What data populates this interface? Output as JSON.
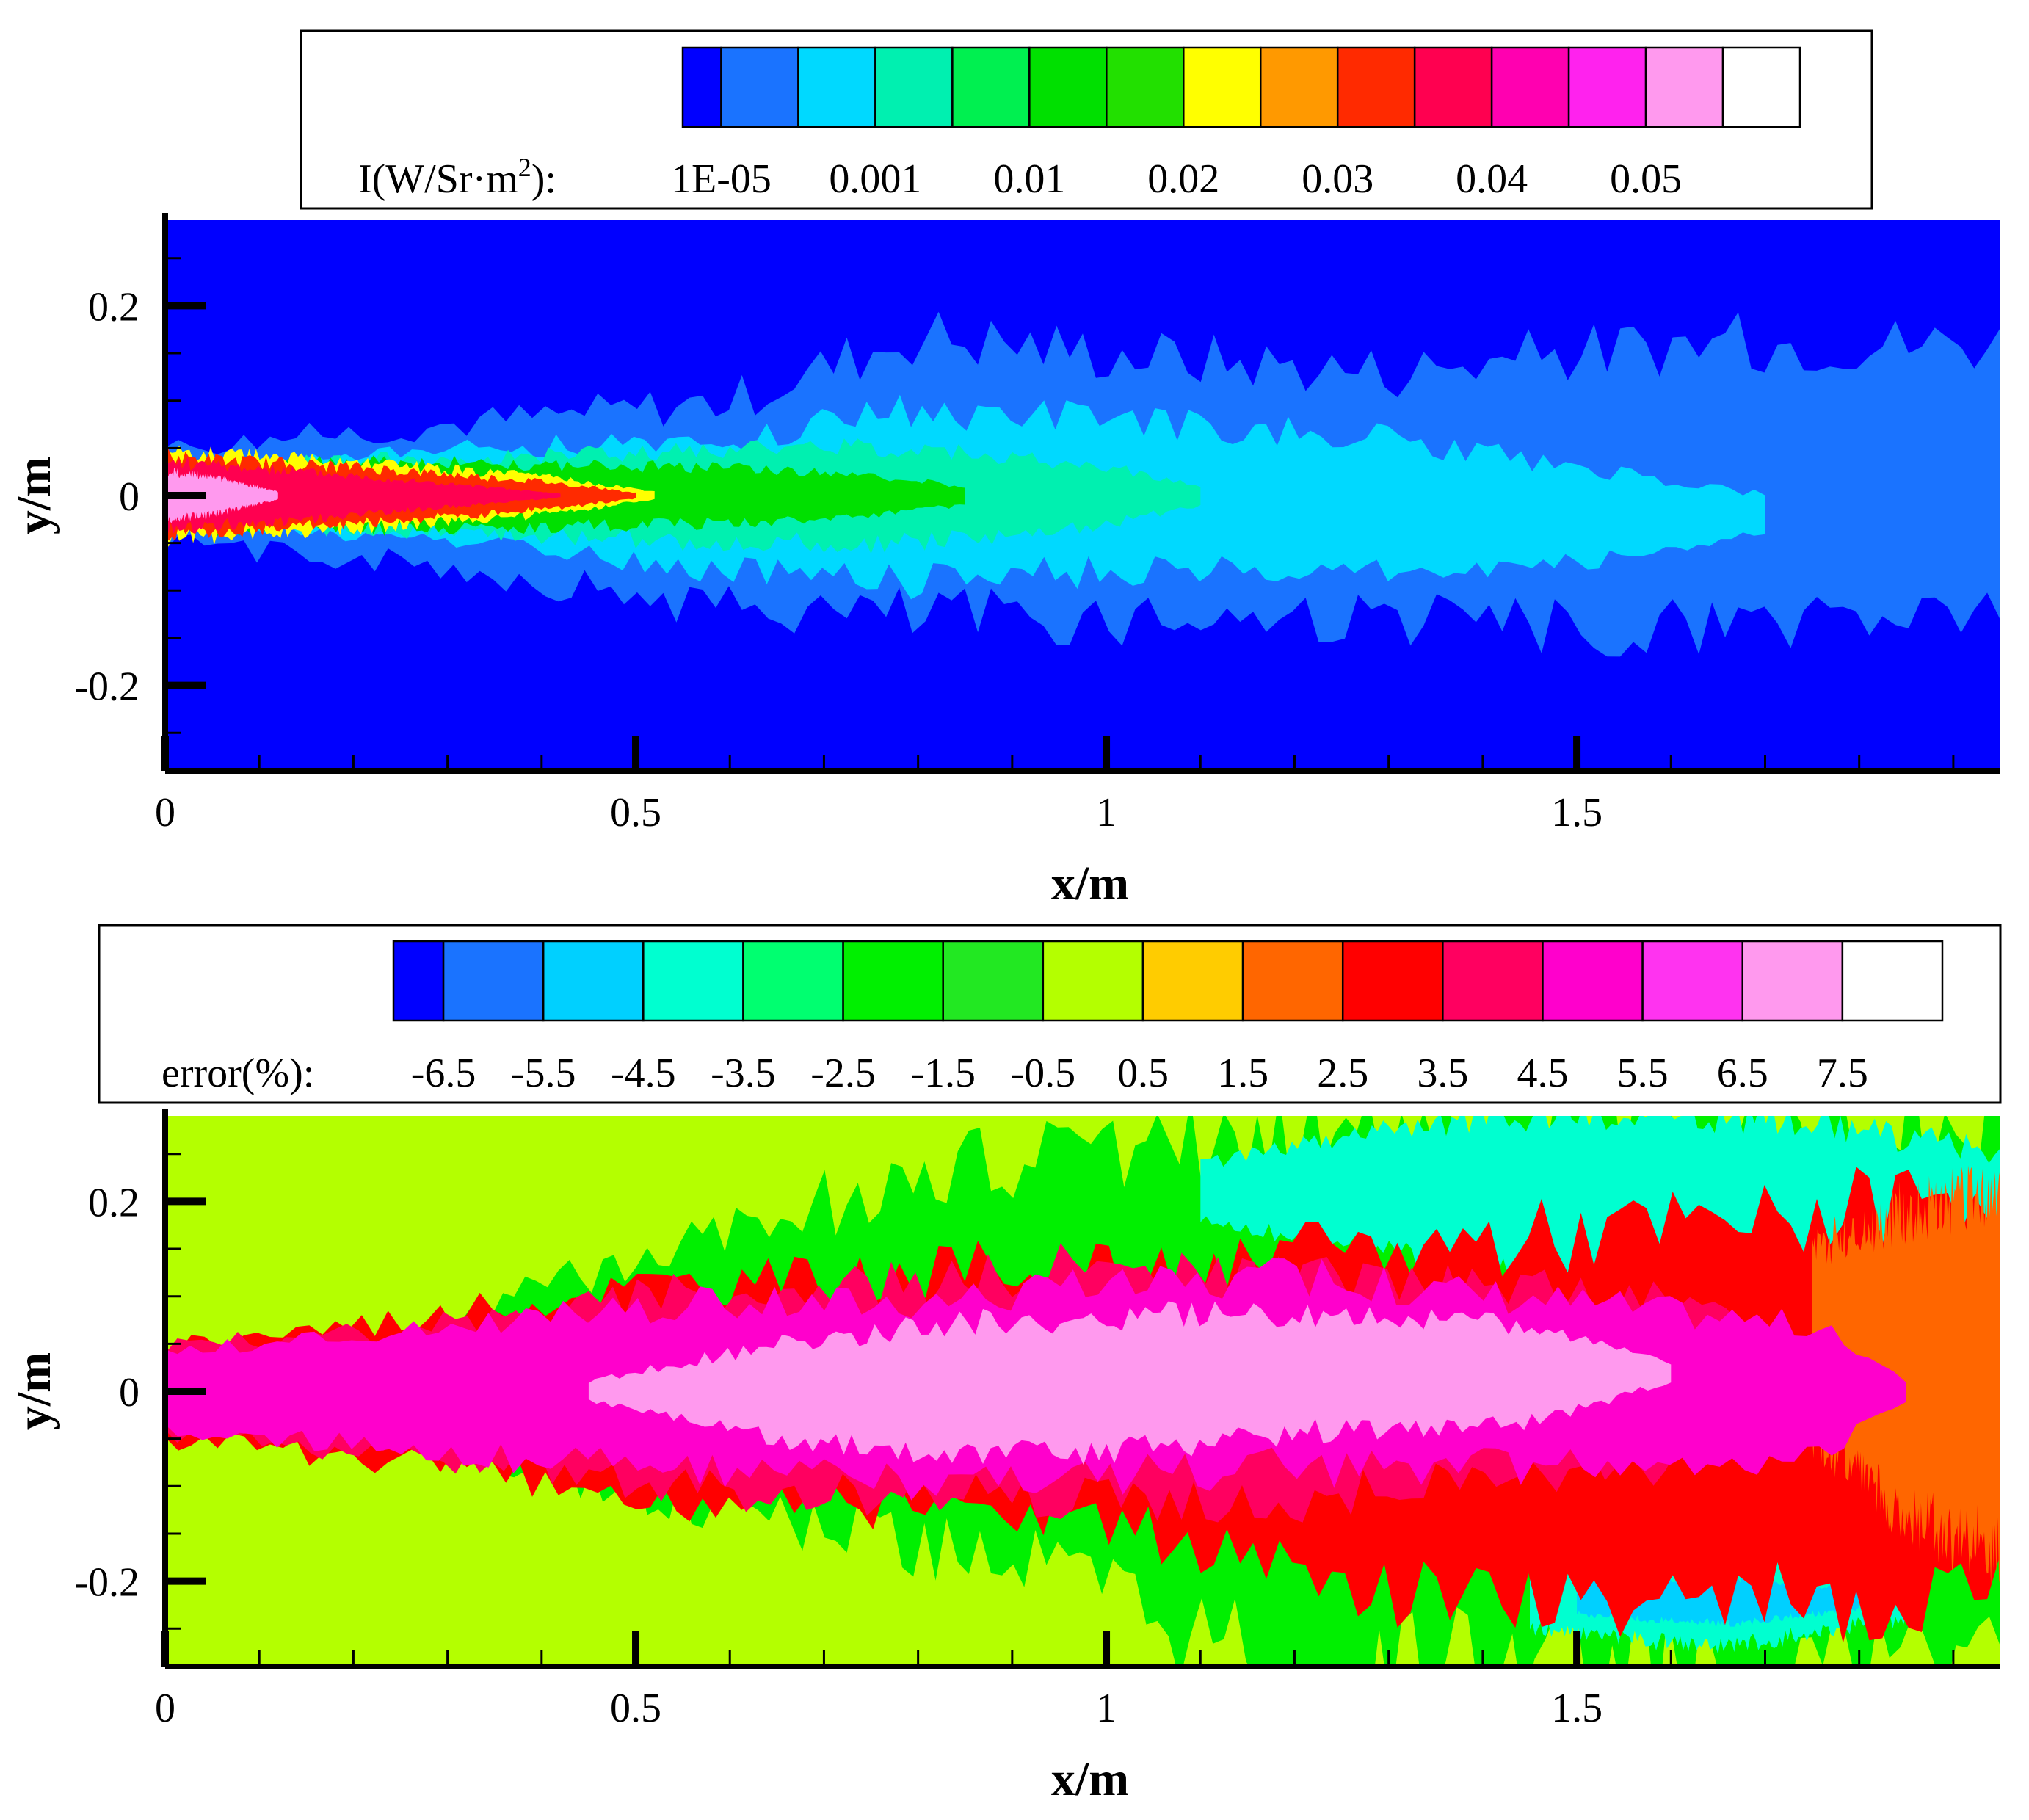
{
  "panels": [
    {
      "id": "intensity",
      "chart_data": {
        "type": "heatmap",
        "xlabel": "x/m",
        "ylabel": "y/m",
        "xlim": [
          0,
          1.95
        ],
        "ylim": [
          -0.29,
          0.29
        ],
        "x_ticks": [
          0,
          0.5,
          1,
          1.5
        ],
        "x_tick_labels": [
          "0",
          "0.5",
          "1",
          "1.5"
        ],
        "y_ticks": [
          0.2,
          0,
          -0.2
        ],
        "y_tick_labels": [
          "0.2",
          "0",
          "-0.2"
        ],
        "background_color": "#0000ff",
        "legend": {
          "label_html": "I(W/Sr·m²):",
          "label_prefix": "I(W/Sr·m",
          "label_sup": "2",
          "label_suffix": "):",
          "colors": [
            "#0000ff",
            "#1a73ff",
            "#00d9ff",
            "#00f0b0",
            "#00f050",
            "#00e000",
            "#22e000",
            "#ffff00",
            "#ff9900",
            "#ff2a00",
            "#ff0050",
            "#ff00b0",
            "#ff22ee",
            "#ff99ee",
            "#ffffff"
          ],
          "tick_labels": [
            "1E-05",
            "0.001",
            "0.01",
            "0.02",
            "0.03",
            "0.04",
            "0.05"
          ],
          "tick_at_box": [
            1,
            3,
            5,
            7,
            9,
            11,
            13
          ]
        },
        "layers": [
          {
            "color": "#1a73ff",
            "x": [
              0,
              0.3,
              0.6,
              0.8,
              1.0,
              1.3,
              1.6,
              1.95
            ],
            "half_width": [
              0.05,
              0.075,
              0.11,
              0.15,
              0.14,
              0.13,
              0.15,
              0.14
            ],
            "center": [
              0,
              0,
              -0.01,
              0.02,
              0.01,
              0,
              0.01,
              0.02
            ]
          },
          {
            "color": "#00d9ff",
            "x": [
              0.05,
              0.3,
              0.6,
              0.8,
              1.0,
              1.3,
              1.5,
              1.7
            ],
            "half_width": [
              0.03,
              0.05,
              0.07,
              0.09,
              0.08,
              0.07,
              0.05,
              0.02
            ],
            "center": [
              0,
              0,
              -0.01,
              0,
              0,
              -0.01,
              -0.02,
              -0.02
            ]
          },
          {
            "color": "#00f0b0",
            "x": [
              0.1,
              0.35,
              0.6,
              0.8,
              1.0,
              1.1
            ],
            "half_width": [
              0.035,
              0.04,
              0.05,
              0.05,
              0.03,
              0.01
            ],
            "center": [
              0,
              0,
              0,
              0,
              0,
              0
            ]
          },
          {
            "color": "#00e000",
            "x": [
              0.05,
              0.3,
              0.55,
              0.7,
              0.85
            ],
            "half_width": [
              0.035,
              0.035,
              0.03,
              0.025,
              0.01
            ],
            "center": [
              0,
              0,
              0,
              0,
              0
            ]
          },
          {
            "color": "#ffff00",
            "x": [
              0,
              0.2,
              0.4,
              0.52
            ],
            "half_width": [
              0.045,
              0.035,
              0.02,
              0.004
            ],
            "center": [
              0,
              0,
              0,
              0
            ]
          },
          {
            "color": "#ff2a00",
            "x": [
              0,
              0.2,
              0.4,
              0.5
            ],
            "half_width": [
              0.04,
              0.03,
              0.015,
              0.003
            ],
            "center": [
              0,
              0,
              0,
              0
            ]
          },
          {
            "color": "#ff0050",
            "x": [
              0,
              0.15,
              0.3,
              0.42
            ],
            "half_width": [
              0.035,
              0.025,
              0.012,
              0.002
            ],
            "center": [
              0,
              0,
              0,
              0
            ]
          },
          {
            "color": "#ff99ee",
            "x": [
              0,
              0.05,
              0.12
            ],
            "half_width": [
              0.025,
              0.02,
              0.004
            ],
            "center": [
              0,
              0,
              0
            ]
          }
        ]
      }
    },
    {
      "id": "error",
      "chart_data": {
        "type": "heatmap",
        "xlabel": "x/m",
        "ylabel": "y/m",
        "xlim": [
          0,
          1.95
        ],
        "ylim": [
          -0.29,
          0.29
        ],
        "x_ticks": [
          0,
          0.5,
          1,
          1.5
        ],
        "x_tick_labels": [
          "0",
          "0.5",
          "1",
          "1.5"
        ],
        "y_ticks": [
          0.2,
          0,
          -0.2
        ],
        "y_tick_labels": [
          "0.2",
          "0",
          "-0.2"
        ],
        "background_color": "#b4ff00",
        "legend": {
          "label": "error(%):",
          "colors": [
            "#0000ff",
            "#1a73ff",
            "#00d0ff",
            "#00ffd0",
            "#00ff70",
            "#00f000",
            "#22e822",
            "#b4ff00",
            "#ffcc00",
            "#ff6600",
            "#ff0000",
            "#ff0060",
            "#ff00cc",
            "#ff33f0",
            "#ff99ee",
            "#ffffff"
          ],
          "tick_labels": [
            "-6.5",
            "-5.5",
            "-4.5",
            "-3.5",
            "-2.5",
            "-1.5",
            "-0.5",
            "0.5",
            "1.5",
            "2.5",
            "3.5",
            "4.5",
            "5.5",
            "6.5",
            "7.5"
          ],
          "tick_at_box": [
            1,
            2,
            3,
            4,
            5,
            6,
            7,
            8,
            9,
            10,
            11,
            12,
            13,
            14,
            15
          ]
        },
        "layers": [
          {
            "color": "#00f000",
            "x": [
              0.3,
              0.6,
              0.9,
              1.1,
              1.3,
              1.6,
              1.95
            ],
            "half_width": [
              0.07,
              0.15,
              0.21,
              0.27,
              0.29,
              0.29,
              0.29
            ],
            "center": [
              0,
              0.03,
              0.03,
              0,
              0,
              0,
              0
            ]
          },
          {
            "color": "#00ffd0",
            "x": [
              1.1,
              1.4,
              1.7,
              1.95
            ],
            "half_width": [
              0.03,
              0.08,
              0.09,
              0.07
            ],
            "center": [
              0.21,
              0.21,
              0.2,
              0.18
            ]
          },
          {
            "color": "#00ffd0",
            "x": [
              1.45,
              1.65,
              1.85
            ],
            "half_width": [
              0.03,
              0.05,
              0.04
            ],
            "center": [
              -0.22,
              -0.22,
              -0.2
            ]
          },
          {
            "color": "#00d0ff",
            "x": [
              1.5,
              1.65,
              1.8
            ],
            "half_width": [
              0.015,
              0.025,
              0.01
            ],
            "center": [
              -0.22,
              -0.22,
              -0.22
            ]
          },
          {
            "color": "#ff0000",
            "x": [
              0,
              0.3,
              0.5,
              0.75,
              0.9,
              1.1,
              1.2,
              1.4,
              1.7,
              1.95
            ],
            "half_width": [
              0.05,
              0.08,
              0.11,
              0.12,
              0.13,
              0.14,
              0.17,
              0.19,
              0.2,
              0.22
            ],
            "center": [
              0,
              0,
              0,
              0,
              0.005,
              -0.02,
              -0.03,
              -0.03,
              -0.02,
              0
            ]
          },
          {
            "color": "#ff6600",
            "x": [
              1.75,
              1.85,
              1.95
            ],
            "half_width": [
              0.1,
              0.16,
              0.19
            ],
            "center": [
              0.05,
              0.03,
              0.02
            ]
          },
          {
            "color": "#ff0060",
            "x": [
              0,
              0.3,
              0.5,
              0.75,
              0.95,
              1.15,
              1.4,
              1.6,
              1.8
            ],
            "half_width": [
              0.045,
              0.07,
              0.1,
              0.11,
              0.12,
              0.12,
              0.1,
              0.09,
              0.02
            ],
            "center": [
              0,
              0,
              0,
              0,
              0.01,
              0,
              0.01,
              0.01,
              0
            ]
          },
          {
            "color": "#ff00cc",
            "x": [
              0,
              0.3,
              0.5,
              0.75,
              1.0,
              1.2,
              1.45,
              1.75,
              1.85
            ],
            "half_width": [
              0.04,
              0.065,
              0.085,
              0.095,
              0.1,
              0.1,
              0.09,
              0.07,
              0.01
            ],
            "center": [
              0,
              0,
              0.005,
              0,
              0.01,
              0.02,
              0.01,
              0,
              0
            ]
          },
          {
            "color": "#ff99ee",
            "x": [
              0.45,
              0.65,
              0.85,
              1.05,
              1.25,
              1.45,
              1.6
            ],
            "half_width": [
              0.01,
              0.05,
              0.07,
              0.07,
              0.06,
              0.05,
              0.01
            ],
            "center": [
              0,
              0,
              0,
              0.01,
              0.02,
              0.02,
              0.02
            ]
          }
        ]
      }
    }
  ]
}
